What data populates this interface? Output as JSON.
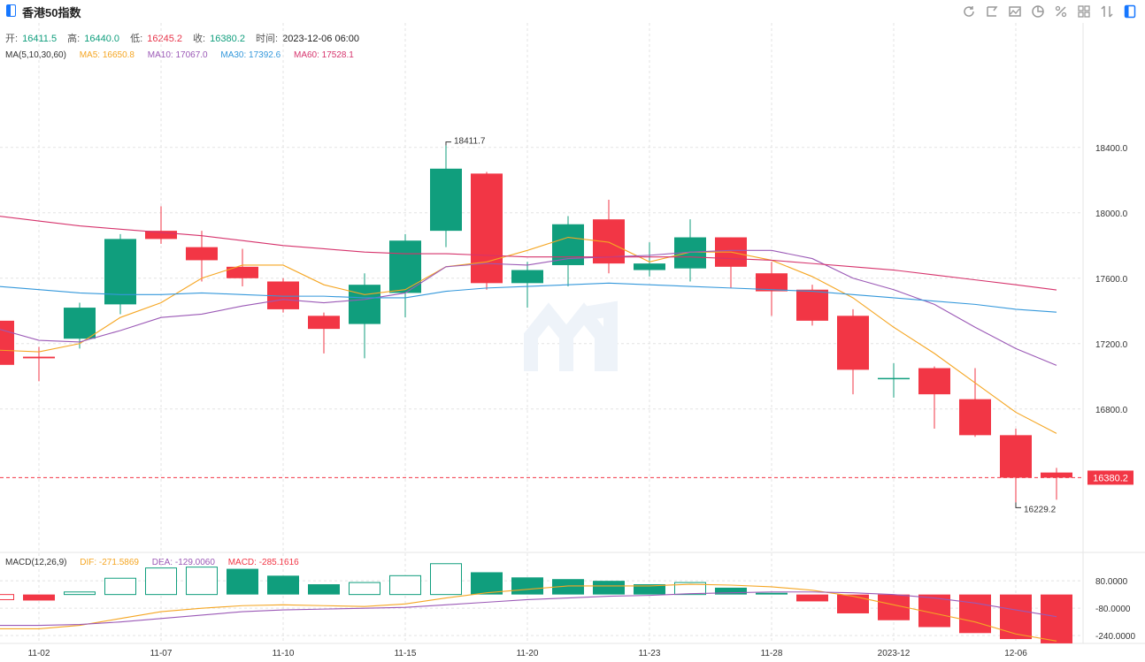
{
  "header": {
    "title": "香港50指数",
    "toolbar": [
      "refresh-icon",
      "draw-icon",
      "chart-type-icon",
      "pie-icon",
      "percent-icon",
      "grid-icon",
      "sort-icon",
      "panel-icon"
    ]
  },
  "ohlc": {
    "open_label": "开:",
    "open": "16411.5",
    "high_label": "高:",
    "high": "16440.0",
    "low_label": "低:",
    "low": "16245.2",
    "close_label": "收:",
    "close": "16380.2",
    "time_label": "时间:",
    "time": "2023-12-06 06:00"
  },
  "ma_legend": {
    "label": "MA(5,10,30,60)",
    "ma5": "MA5: 16650.8",
    "ma10": "MA10: 17067.0",
    "ma30": "MA30: 17392.6",
    "ma60": "MA60: 17528.1"
  },
  "macd_legend": {
    "label": "MACD(12,26,9)",
    "dif": "DIF: -271.5869",
    "dea": "DEA: -129.0060",
    "macd": "MACD: -285.1616"
  },
  "colors": {
    "up": "#109e7d",
    "down": "#f23645",
    "ma5": "#f5a623",
    "ma10": "#9b59b6",
    "ma30": "#3498db",
    "ma60": "#d6336c",
    "dif": "#f5a623",
    "dea": "#9b59b6"
  },
  "chart_data": {
    "type": "candlestick",
    "x_tick_labels": [
      "11-02",
      "11-07",
      "11-10",
      "11-15",
      "11-20",
      "11-23",
      "11-28",
      "2023-12",
      "12-06"
    ],
    "x_tick_index": [
      1,
      4,
      7,
      10,
      13,
      16,
      19,
      22,
      25
    ],
    "y_ticks": [
      16800,
      17200,
      17600,
      18000,
      18400
    ],
    "y_tick_labels": [
      "16800.0",
      "17200.0",
      "17600.0",
      "18000.0",
      "18400.0"
    ],
    "ylim": [
      15950,
      18880
    ],
    "candles": [
      {
        "o": 17340,
        "h": 17340,
        "l": 17060,
        "c": 17070
      },
      {
        "o": 17120,
        "h": 17180,
        "l": 16970,
        "c": 17110
      },
      {
        "o": 17230,
        "h": 17450,
        "l": 17170,
        "c": 17420
      },
      {
        "o": 17440,
        "h": 17870,
        "l": 17380,
        "c": 17840
      },
      {
        "o": 17890,
        "h": 18040,
        "l": 17810,
        "c": 17840
      },
      {
        "o": 17790,
        "h": 17890,
        "l": 17580,
        "c": 17710
      },
      {
        "o": 17670,
        "h": 17780,
        "l": 17550,
        "c": 17600
      },
      {
        "o": 17580,
        "h": 17600,
        "l": 17390,
        "c": 17410
      },
      {
        "o": 17370,
        "h": 17390,
        "l": 17140,
        "c": 17290
      },
      {
        "o": 17320,
        "h": 17630,
        "l": 17110,
        "c": 17560
      },
      {
        "o": 17510,
        "h": 17870,
        "l": 17360,
        "c": 17830
      },
      {
        "o": 17890,
        "h": 18411.7,
        "l": 17790,
        "c": 18270
      },
      {
        "o": 18240,
        "h": 18250,
        "l": 17530,
        "c": 17570
      },
      {
        "o": 17570,
        "h": 17700,
        "l": 17420,
        "c": 17650
      },
      {
        "o": 17680,
        "h": 17980,
        "l": 17550,
        "c": 17930
      },
      {
        "o": 17960,
        "h": 18080,
        "l": 17630,
        "c": 17690
      },
      {
        "o": 17650,
        "h": 17820,
        "l": 17610,
        "c": 17690
      },
      {
        "o": 17660,
        "h": 17960,
        "l": 17580,
        "c": 17850
      },
      {
        "o": 17850,
        "h": 17850,
        "l": 17540,
        "c": 17670
      },
      {
        "o": 17630,
        "h": 17700,
        "l": 17370,
        "c": 17520
      },
      {
        "o": 17530,
        "h": 17560,
        "l": 17310,
        "c": 17340
      },
      {
        "o": 17370,
        "h": 17410,
        "l": 16890,
        "c": 17040
      },
      {
        "o": 16990,
        "h": 17080,
        "l": 16870,
        "c": 16990
      },
      {
        "o": 17050,
        "h": 17060,
        "l": 16680,
        "c": 16890
      },
      {
        "o": 16860,
        "h": 17050,
        "l": 16630,
        "c": 16640
      },
      {
        "o": 16640,
        "h": 16680,
        "l": 16229.2,
        "c": 16380
      },
      {
        "o": 16411.5,
        "h": 16440,
        "l": 16245.2,
        "c": 16380.2
      }
    ],
    "ma": {
      "ma5": [
        17160,
        17150,
        17200,
        17360,
        17450,
        17600,
        17680,
        17680,
        17560,
        17500,
        17530,
        17670,
        17700,
        17770,
        17850,
        17820,
        17700,
        17760,
        17760,
        17710,
        17610,
        17480,
        17300,
        17140,
        16960,
        16780,
        16650.8
      ],
      "ma10": [
        17290,
        17220,
        17210,
        17280,
        17360,
        17380,
        17430,
        17470,
        17450,
        17470,
        17510,
        17670,
        17690,
        17680,
        17720,
        17730,
        17740,
        17760,
        17770,
        17770,
        17720,
        17600,
        17530,
        17440,
        17300,
        17170,
        17067.0
      ],
      "ma30": [
        17550,
        17530,
        17510,
        17500,
        17500,
        17510,
        17500,
        17490,
        17490,
        17480,
        17480,
        17520,
        17540,
        17550,
        17560,
        17570,
        17560,
        17550,
        17540,
        17530,
        17520,
        17500,
        17480,
        17460,
        17440,
        17410,
        17392.6
      ],
      "ma60": [
        17980,
        17950,
        17920,
        17900,
        17880,
        17860,
        17830,
        17800,
        17780,
        17760,
        17750,
        17750,
        17740,
        17730,
        17730,
        17730,
        17730,
        17730,
        17720,
        17710,
        17690,
        17670,
        17650,
        17620,
        17590,
        17560,
        17528.1
      ]
    },
    "price_line": 16380.2,
    "high_marker": {
      "index": 11,
      "label": "18411.7"
    },
    "low_marker": {
      "index": 25,
      "label": "16229.2"
    },
    "last_price_label": "16380.2",
    "macd": {
      "y_ticks": [
        80,
        -80,
        -240
      ],
      "y_tick_labels": [
        "80.0000",
        "-80.0000",
        "-240.0000"
      ],
      "ylim": [
        -270,
        220
      ],
      "hist": [
        -30,
        -35,
        15,
        95,
        155,
        160,
        150,
        110,
        60,
        70,
        110,
        180,
        130,
        100,
        90,
        80,
        60,
        70,
        40,
        10,
        -40,
        -110,
        -150,
        -190,
        -225,
        -260,
        -285.16
      ],
      "dif": [
        -200,
        -200,
        -180,
        -140,
        -100,
        -80,
        -65,
        -60,
        -65,
        -70,
        -55,
        -20,
        10,
        30,
        50,
        50,
        50,
        60,
        55,
        45,
        25,
        -10,
        -60,
        -110,
        -160,
        -230,
        -271.59
      ],
      "dea": [
        -180,
        -180,
        -175,
        -160,
        -140,
        -120,
        -100,
        -90,
        -85,
        -80,
        -75,
        -60,
        -45,
        -30,
        -20,
        -10,
        -5,
        5,
        10,
        15,
        15,
        10,
        0,
        -20,
        -50,
        -90,
        -129.01
      ]
    }
  }
}
